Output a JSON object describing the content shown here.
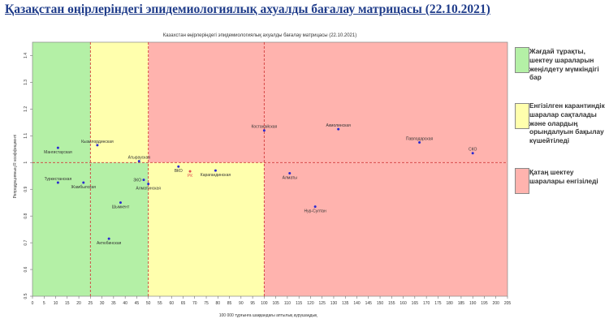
{
  "header": {
    "title": "Қазақстан өңірлеріндегі эпидемиологиялық ахуалды бағалау матрицасы  (22.10.2021)"
  },
  "legend": [
    {
      "label": "Жағдай тұрақты, шектеу шараларын жеңілдету мүмкіндігі бар",
      "color": "#b4f0a6"
    },
    {
      "label": "Енгізілген карантиндік шаралар сақталады және олардың орындалуын бақылау күшейтіледі",
      "color": "#ffffad"
    },
    {
      "label": "Қатаң шектеу шаралары енгізіледі",
      "color": "#ffb3ae"
    }
  ],
  "chart_data": {
    "type": "scatter",
    "title": "Казахстан өңірлеріндегі эпидемиологиялық ахуалды бағалау матрицасы (22.10.2021)",
    "xlabel": "100 000 тұрғынға шаққандағы аптылық аурушаңдық",
    "ylabel": "Репродукцияның R коэффициенті",
    "xlim": [
      0,
      205
    ],
    "ylim": [
      0.5,
      1.45
    ],
    "x_ticks": [
      0,
      5,
      10,
      15,
      20,
      25,
      30,
      35,
      40,
      45,
      50,
      55,
      60,
      65,
      70,
      75,
      80,
      85,
      90,
      95,
      100,
      105,
      110,
      115,
      120,
      125,
      130,
      135,
      140,
      145,
      150,
      155,
      160,
      165,
      170,
      175,
      180,
      185,
      190,
      195,
      200,
      205
    ],
    "y_ticks": [
      0.5,
      0.6,
      0.7,
      0.8,
      0.9,
      1.0,
      1.1,
      1.2,
      1.3,
      1.4
    ],
    "y_tick_labels": [
      "0.5",
      "0.6",
      "0.7",
      "0.8",
      "0.9",
      "1",
      "1.1",
      "1.2",
      "1.3",
      "1.4"
    ],
    "zones": [
      {
        "x_from": 0,
        "x_to": 25,
        "y_from": 0.5,
        "y_to": 1.0,
        "color": "#b4f0a6"
      },
      {
        "x_from": 0,
        "x_to": 25,
        "y_from": 1.0,
        "y_to": 1.45,
        "color": "#b4f0a6"
      },
      {
        "x_from": 25,
        "x_to": 50,
        "y_from": 0.5,
        "y_to": 1.0,
        "color": "#b4f0a6"
      },
      {
        "x_from": 25,
        "x_to": 50,
        "y_from": 1.0,
        "y_to": 1.45,
        "color": "#ffffad"
      },
      {
        "x_from": 50,
        "x_to": 100,
        "y_from": 0.5,
        "y_to": 1.0,
        "color": "#ffffad"
      },
      {
        "x_from": 50,
        "x_to": 205,
        "y_from": 1.0,
        "y_to": 1.45,
        "color": "#ffb3ae"
      },
      {
        "x_from": 100,
        "x_to": 205,
        "y_from": 0.5,
        "y_to": 1.0,
        "color": "#ffb3ae"
      }
    ],
    "ref_lines": {
      "x": [
        25,
        50,
        100
      ],
      "y": 1.0,
      "color": "#d23c3c"
    },
    "points": [
      {
        "name": "Мангистауская",
        "x": 11,
        "y": 1.055,
        "label_pos": "below"
      },
      {
        "name": "Кызылординская",
        "x": 28,
        "y": 1.065,
        "label_pos": "above"
      },
      {
        "name": "Атырауская",
        "x": 46,
        "y": 1.005,
        "label_pos": "above"
      },
      {
        "name": "Туркестанская",
        "x": 11,
        "y": 0.925,
        "label_pos": "above"
      },
      {
        "name": "Жамбылская",
        "x": 22,
        "y": 0.925,
        "label_pos": "below"
      },
      {
        "name": "ЗКО",
        "x": 48,
        "y": 0.935,
        "label_pos": "left"
      },
      {
        "name": "Алматинская",
        "x": 50,
        "y": 0.92,
        "label_pos": "below"
      },
      {
        "name": "Шымкент",
        "x": 38,
        "y": 0.85,
        "label_pos": "below"
      },
      {
        "name": "Актюбинская",
        "x": 33,
        "y": 0.715,
        "label_pos": "below"
      },
      {
        "name": "ВКО",
        "x": 63,
        "y": 0.985,
        "label_pos": "below"
      },
      {
        "name": "РК",
        "x": 68,
        "y": 0.967,
        "label_pos": "below",
        "color": "#e05050"
      },
      {
        "name": "Карагандинская",
        "x": 79,
        "y": 0.97,
        "label_pos": "below"
      },
      {
        "name": "Костанайская",
        "x": 100,
        "y": 1.12,
        "label_pos": "above"
      },
      {
        "name": "Акмолинская",
        "x": 132,
        "y": 1.125,
        "label_pos": "above"
      },
      {
        "name": "Алматы",
        "x": 111,
        "y": 0.96,
        "label_pos": "below"
      },
      {
        "name": "Нур-Султан",
        "x": 122,
        "y": 0.835,
        "label_pos": "below"
      },
      {
        "name": "Павлодарская",
        "x": 167,
        "y": 1.075,
        "label_pos": "above"
      },
      {
        "name": "СКО",
        "x": 190,
        "y": 1.035,
        "label_pos": "above"
      }
    ]
  }
}
